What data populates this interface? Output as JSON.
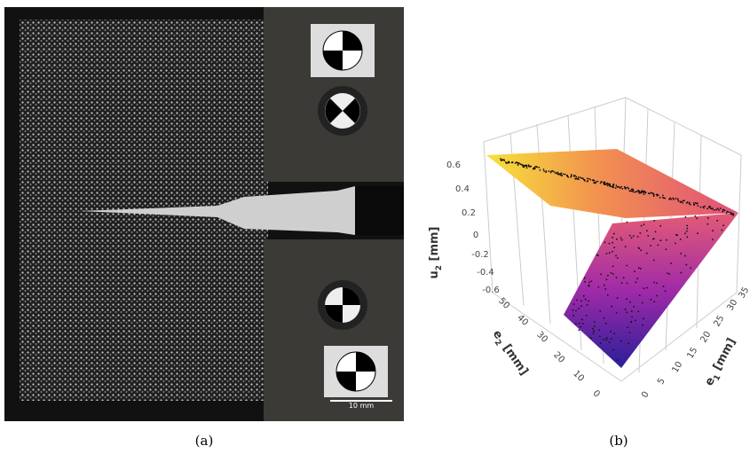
{
  "figure": {
    "panel_a": {
      "caption": "(a)",
      "scale_bar": "10 mm"
    },
    "panel_b": {
      "caption": "(b)",
      "z_axis": {
        "symbol": "u",
        "subscript": "2",
        "unit": "[mm]",
        "ticks": [
          0.6,
          0.4,
          0.2,
          0,
          -0.2,
          -0.4,
          -0.6
        ]
      },
      "y_axis": {
        "symbol": "e",
        "subscript": "2",
        "unit": "[mm]",
        "ticks": [
          50,
          40,
          30,
          20,
          10,
          0
        ]
      },
      "x_axis": {
        "symbol": "e",
        "subscript": "1",
        "unit": "[mm]",
        "ticks": [
          35,
          30,
          25,
          20,
          15,
          10,
          5,
          0
        ]
      }
    }
  }
}
